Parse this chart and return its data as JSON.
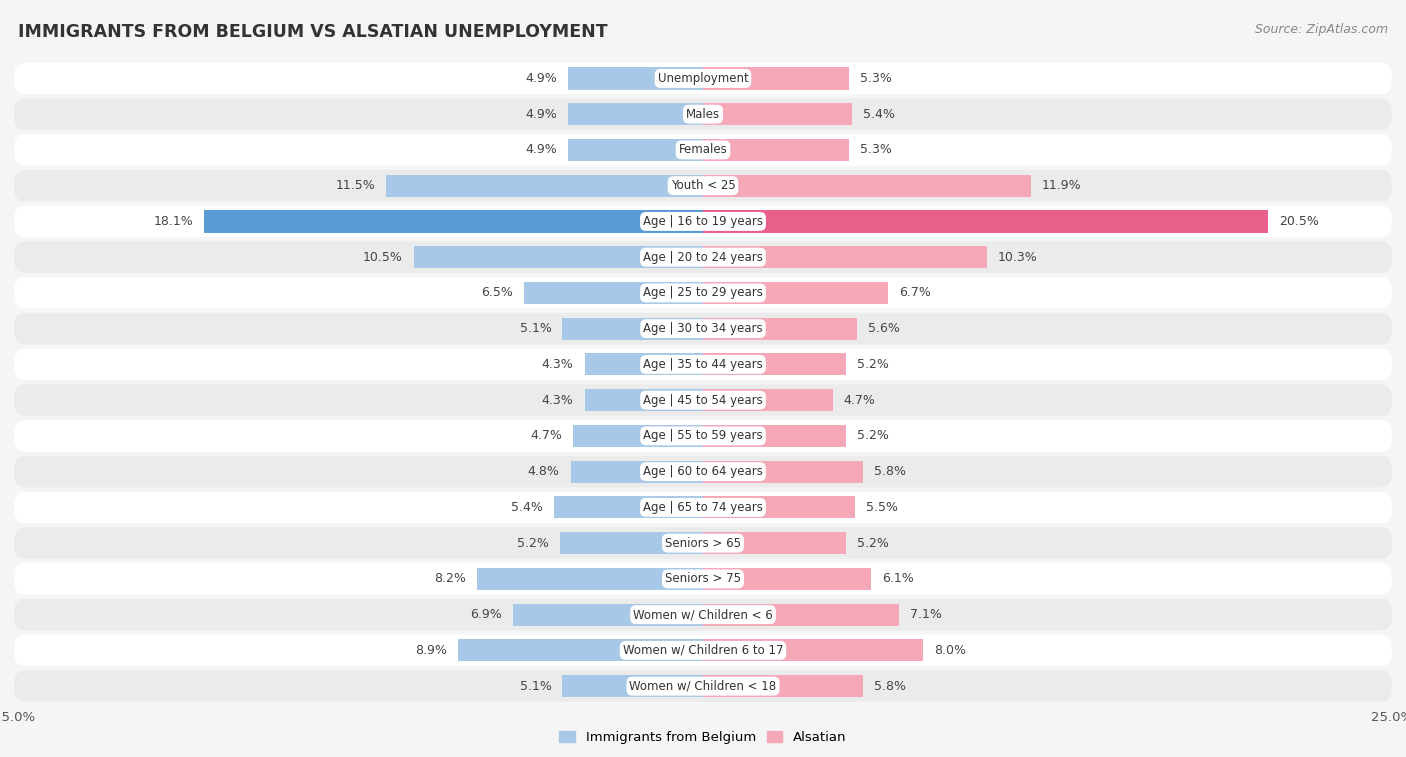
{
  "title": "IMMIGRANTS FROM BELGIUM VS ALSATIAN UNEMPLOYMENT",
  "source": "Source: ZipAtlas.com",
  "categories": [
    "Unemployment",
    "Males",
    "Females",
    "Youth < 25",
    "Age | 16 to 19 years",
    "Age | 20 to 24 years",
    "Age | 25 to 29 years",
    "Age | 30 to 34 years",
    "Age | 35 to 44 years",
    "Age | 45 to 54 years",
    "Age | 55 to 59 years",
    "Age | 60 to 64 years",
    "Age | 65 to 74 years",
    "Seniors > 65",
    "Seniors > 75",
    "Women w/ Children < 6",
    "Women w/ Children 6 to 17",
    "Women w/ Children < 18"
  ],
  "belgium_values": [
    4.9,
    4.9,
    4.9,
    11.5,
    18.1,
    10.5,
    6.5,
    5.1,
    4.3,
    4.3,
    4.7,
    4.8,
    5.4,
    5.2,
    8.2,
    6.9,
    8.9,
    5.1
  ],
  "alsatian_values": [
    5.3,
    5.4,
    5.3,
    11.9,
    20.5,
    10.3,
    6.7,
    5.6,
    5.2,
    4.7,
    5.2,
    5.8,
    5.5,
    5.2,
    6.1,
    7.1,
    8.0,
    5.8
  ],
  "belgium_color": "#A8C8E8",
  "alsatian_color": "#F4A8B8",
  "belgium_highlight_color": "#5B9BD5",
  "alsatian_highlight_color": "#E8608A",
  "background_color": "#F5F5F5",
  "row_color_light": "#FFFFFF",
  "row_color_dark": "#EBEBEB",
  "axis_limit": 25.0,
  "bar_height": 0.62,
  "legend_belgium": "Immigrants from Belgium",
  "legend_alsatian": "Alsatian"
}
